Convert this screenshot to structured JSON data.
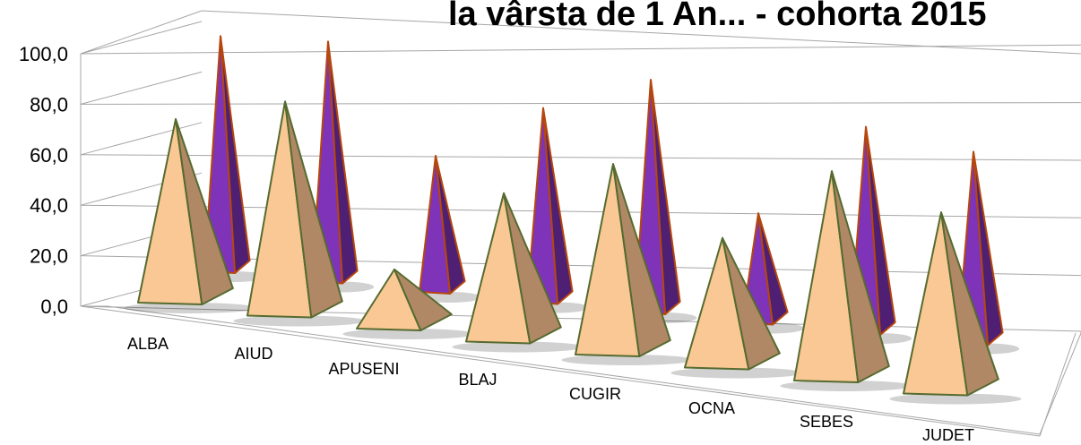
{
  "chart_data": {
    "type": "bar",
    "title": "la vârsta de 1 An... - cohorta 2015",
    "categories": [
      "ALBA",
      "AIUD",
      "APUSENI",
      "BLAJ",
      "CUGIR",
      "OCNA",
      "SEBES",
      "JUDET"
    ],
    "series": [
      {
        "values": [
          79,
          92,
          26,
          64,
          82,
          56,
          90,
          78
        ]
      },
      {
        "values": [
          98,
          100,
          57,
          81,
          97,
          46,
          86,
          80
        ]
      }
    ],
    "yticks": [
      "0,0",
      "20,0",
      "40,0",
      "60,0",
      "80,0",
      "100,0"
    ],
    "ylim": [
      0,
      100
    ],
    "colors": {
      "series1_front": "#FAC894",
      "series1_side": "#B08866",
      "series1_edge": "#556B2F",
      "series2_front": "#7E33B8",
      "series2_side": "#4E1F72",
      "series2_edge": "#B5470E",
      "grid": "#A6A6A6"
    }
  }
}
